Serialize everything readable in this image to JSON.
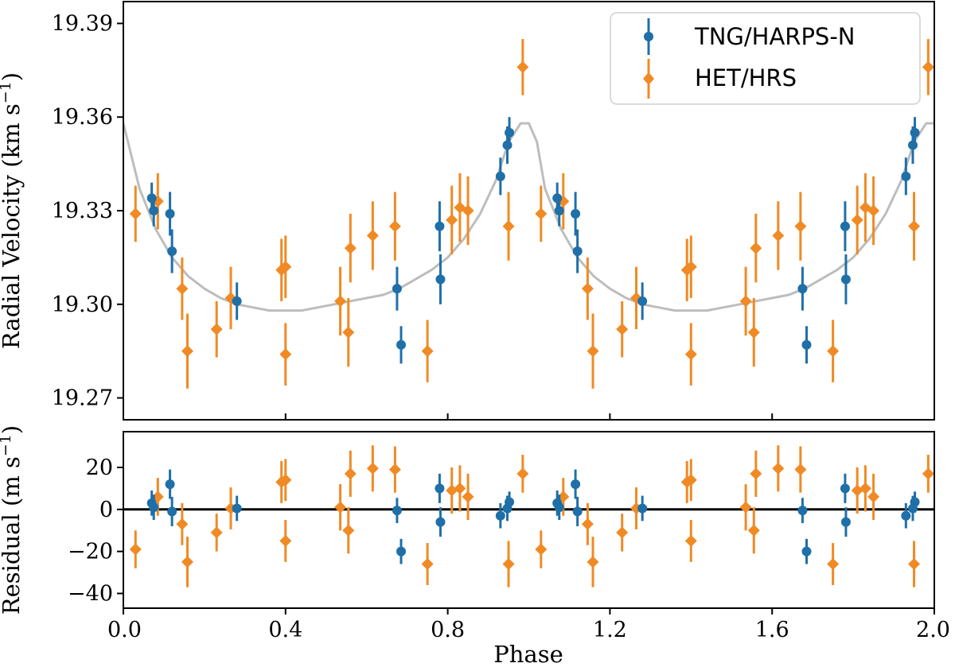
{
  "chart_data": {
    "type": "scatter",
    "x_label": "Phase",
    "x_ticks": [
      "0.0",
      "0.4",
      "0.8",
      "1.2",
      "1.6",
      "2.0"
    ],
    "xlim": [
      0.0,
      2.0
    ],
    "colors": {
      "tng": "#1f6fa8",
      "het": "#f08a24",
      "model": "#bdbdbd",
      "zero": "#000000"
    },
    "top_panel": {
      "y_label_main": "Radial Velocity (km s",
      "y_label_sup": "−1",
      "y_label_end": ")",
      "y_ticks": [
        "19.27",
        "19.30",
        "19.33",
        "19.36",
        "19.39"
      ],
      "ylim": [
        19.263,
        19.397
      ],
      "model_points": [
        [
          0.0,
          19.358
        ],
        [
          0.04,
          19.337
        ],
        [
          0.08,
          19.324
        ],
        [
          0.12,
          19.315
        ],
        [
          0.16,
          19.309
        ],
        [
          0.2,
          19.305
        ],
        [
          0.24,
          19.302
        ],
        [
          0.28,
          19.3
        ],
        [
          0.32,
          19.299
        ],
        [
          0.36,
          19.298
        ],
        [
          0.4,
          19.298
        ],
        [
          0.44,
          19.298
        ],
        [
          0.48,
          19.299
        ],
        [
          0.52,
          19.3
        ],
        [
          0.56,
          19.301
        ],
        [
          0.6,
          19.302
        ],
        [
          0.64,
          19.303
        ],
        [
          0.68,
          19.305
        ],
        [
          0.72,
          19.308
        ],
        [
          0.76,
          19.311
        ],
        [
          0.8,
          19.315
        ],
        [
          0.84,
          19.321
        ],
        [
          0.88,
          19.329
        ],
        [
          0.92,
          19.34
        ],
        [
          0.95,
          19.352
        ],
        [
          0.98,
          19.358
        ],
        [
          1.0,
          19.358
        ],
        [
          1.02,
          19.352
        ],
        [
          1.04,
          19.337
        ],
        [
          1.08,
          19.324
        ],
        [
          1.12,
          19.315
        ],
        [
          1.16,
          19.309
        ],
        [
          1.2,
          19.305
        ],
        [
          1.24,
          19.302
        ],
        [
          1.28,
          19.3
        ],
        [
          1.32,
          19.299
        ],
        [
          1.36,
          19.298
        ],
        [
          1.4,
          19.298
        ],
        [
          1.44,
          19.298
        ],
        [
          1.48,
          19.299
        ],
        [
          1.52,
          19.3
        ],
        [
          1.56,
          19.301
        ],
        [
          1.6,
          19.302
        ],
        [
          1.64,
          19.303
        ],
        [
          1.68,
          19.305
        ],
        [
          1.72,
          19.308
        ],
        [
          1.76,
          19.311
        ],
        [
          1.8,
          19.315
        ],
        [
          1.84,
          19.321
        ],
        [
          1.88,
          19.329
        ],
        [
          1.92,
          19.34
        ],
        [
          1.95,
          19.352
        ],
        [
          1.98,
          19.358
        ],
        [
          2.0,
          19.358
        ]
      ],
      "series": [
        {
          "name": "TNG/HARPS-N",
          "marker": "circle",
          "points": [
            [
              0.07,
              19.334,
              0.005
            ],
            [
              0.075,
              19.33,
              0.005
            ],
            [
              0.115,
              19.329,
              0.007
            ],
            [
              0.12,
              19.317,
              0.007
            ],
            [
              0.28,
              19.301,
              0.006
            ],
            [
              0.675,
              19.305,
              0.007
            ],
            [
              0.685,
              19.287,
              0.006
            ],
            [
              0.78,
              19.325,
              0.008
            ],
            [
              0.782,
              19.308,
              0.008
            ],
            [
              0.93,
              19.341,
              0.006
            ],
            [
              0.947,
              19.351,
              0.006
            ],
            [
              0.952,
              19.355,
              0.005
            ],
            [
              1.07,
              19.334,
              0.005
            ],
            [
              1.075,
              19.33,
              0.005
            ],
            [
              1.115,
              19.329,
              0.007
            ],
            [
              1.12,
              19.317,
              0.007
            ],
            [
              1.28,
              19.301,
              0.006
            ],
            [
              1.675,
              19.305,
              0.007
            ],
            [
              1.685,
              19.287,
              0.006
            ],
            [
              1.78,
              19.325,
              0.008
            ],
            [
              1.782,
              19.308,
              0.008
            ],
            [
              1.93,
              19.341,
              0.006
            ],
            [
              1.947,
              19.351,
              0.006
            ],
            [
              1.952,
              19.355,
              0.005
            ]
          ]
        },
        {
          "name": "HET/HRS",
          "marker": "diamond",
          "points": [
            [
              0.03,
              19.329,
              0.009
            ],
            [
              0.085,
              19.333,
              0.009
            ],
            [
              0.145,
              19.305,
              0.01
            ],
            [
              0.158,
              19.285,
              0.012
            ],
            [
              0.23,
              19.292,
              0.009
            ],
            [
              0.265,
              19.302,
              0.01
            ],
            [
              0.39,
              19.311,
              0.01
            ],
            [
              0.4,
              19.312,
              0.01
            ],
            [
              0.4,
              19.284,
              0.01
            ],
            [
              0.535,
              19.301,
              0.011
            ],
            [
              0.555,
              19.291,
              0.011
            ],
            [
              0.56,
              19.318,
              0.011
            ],
            [
              0.615,
              19.322,
              0.011
            ],
            [
              0.67,
              19.325,
              0.011
            ],
            [
              0.75,
              19.285,
              0.01
            ],
            [
              0.81,
              19.327,
              0.011
            ],
            [
              0.83,
              19.331,
              0.011
            ],
            [
              0.85,
              19.33,
              0.011
            ],
            [
              0.95,
              19.325,
              0.011
            ],
            [
              0.985,
              19.376,
              0.009
            ],
            [
              1.03,
              19.329,
              0.009
            ],
            [
              1.085,
              19.333,
              0.009
            ],
            [
              1.145,
              19.305,
              0.01
            ],
            [
              1.158,
              19.285,
              0.012
            ],
            [
              1.23,
              19.292,
              0.009
            ],
            [
              1.265,
              19.302,
              0.01
            ],
            [
              1.39,
              19.311,
              0.01
            ],
            [
              1.4,
              19.312,
              0.01
            ],
            [
              1.4,
              19.284,
              0.01
            ],
            [
              1.535,
              19.301,
              0.011
            ],
            [
              1.555,
              19.291,
              0.011
            ],
            [
              1.56,
              19.318,
              0.011
            ],
            [
              1.615,
              19.322,
              0.011
            ],
            [
              1.67,
              19.325,
              0.011
            ],
            [
              1.75,
              19.285,
              0.01
            ],
            [
              1.81,
              19.327,
              0.011
            ],
            [
              1.83,
              19.331,
              0.011
            ],
            [
              1.85,
              19.33,
              0.011
            ],
            [
              1.95,
              19.325,
              0.011
            ],
            [
              1.985,
              19.376,
              0.009
            ]
          ]
        }
      ]
    },
    "bottom_panel": {
      "y_label_main": "Residual (m s",
      "y_label_sup": "−1",
      "y_label_end": ")",
      "y_ticks": [
        "20",
        "0",
        "−20",
        "−40"
      ],
      "y_tick_values": [
        20,
        0,
        -20,
        -40
      ],
      "ylim": [
        -47,
        37
      ],
      "series": [
        {
          "name": "TNG/HARPS-N",
          "marker": "circle",
          "points": [
            [
              0.07,
              3,
              6
            ],
            [
              0.075,
              1,
              6
            ],
            [
              0.115,
              12,
              7
            ],
            [
              0.12,
              -1,
              7
            ],
            [
              0.28,
              0.5,
              6
            ],
            [
              0.675,
              -0.5,
              6
            ],
            [
              0.685,
              -20,
              6
            ],
            [
              0.78,
              10,
              7
            ],
            [
              0.782,
              -6,
              7
            ],
            [
              0.93,
              -3,
              6
            ],
            [
              0.947,
              0.5,
              6
            ],
            [
              0.952,
              3.5,
              5
            ],
            [
              1.07,
              3,
              6
            ],
            [
              1.075,
              1,
              6
            ],
            [
              1.115,
              12,
              7
            ],
            [
              1.12,
              -1,
              7
            ],
            [
              1.28,
              0.5,
              6
            ],
            [
              1.675,
              -0.5,
              6
            ],
            [
              1.685,
              -20,
              6
            ],
            [
              1.78,
              10,
              7
            ],
            [
              1.782,
              -6,
              7
            ],
            [
              1.93,
              -3,
              6
            ],
            [
              1.947,
              0.5,
              6
            ],
            [
              1.952,
              3.5,
              5
            ]
          ]
        },
        {
          "name": "HET/HRS",
          "marker": "diamond",
          "points": [
            [
              0.03,
              -19,
              9
            ],
            [
              0.085,
              6,
              9
            ],
            [
              0.145,
              -7,
              10
            ],
            [
              0.158,
              -25,
              12
            ],
            [
              0.23,
              -11,
              9
            ],
            [
              0.265,
              0.5,
              10
            ],
            [
              0.39,
              13,
              10
            ],
            [
              0.4,
              14,
              10
            ],
            [
              0.4,
              -15,
              10
            ],
            [
              0.535,
              1,
              11
            ],
            [
              0.555,
              -10,
              11
            ],
            [
              0.56,
              17,
              11
            ],
            [
              0.615,
              19.5,
              11
            ],
            [
              0.67,
              19,
              11
            ],
            [
              0.75,
              -26,
              10
            ],
            [
              0.81,
              9,
              11
            ],
            [
              0.83,
              10,
              11
            ],
            [
              0.85,
              6,
              11
            ],
            [
              0.95,
              -26,
              11
            ],
            [
              0.985,
              17,
              9
            ],
            [
              1.03,
              -19,
              9
            ],
            [
              1.085,
              6,
              9
            ],
            [
              1.145,
              -7,
              10
            ],
            [
              1.158,
              -25,
              12
            ],
            [
              1.23,
              -11,
              9
            ],
            [
              1.265,
              0.5,
              10
            ],
            [
              1.39,
              13,
              10
            ],
            [
              1.4,
              14,
              10
            ],
            [
              1.4,
              -15,
              10
            ],
            [
              1.535,
              1,
              11
            ],
            [
              1.555,
              -10,
              11
            ],
            [
              1.56,
              17,
              11
            ],
            [
              1.615,
              19.5,
              11
            ],
            [
              1.67,
              19,
              11
            ],
            [
              1.75,
              -26,
              10
            ],
            [
              1.81,
              9,
              11
            ],
            [
              1.83,
              10,
              11
            ],
            [
              1.85,
              6,
              11
            ],
            [
              1.95,
              -26,
              11
            ],
            [
              1.985,
              17,
              9
            ]
          ]
        }
      ]
    },
    "legend": {
      "placement": "top-right",
      "entries": [
        {
          "label": "TNG/HARPS-N",
          "marker": "circle"
        },
        {
          "label": "HET/HRS",
          "marker": "diamond"
        }
      ]
    }
  }
}
